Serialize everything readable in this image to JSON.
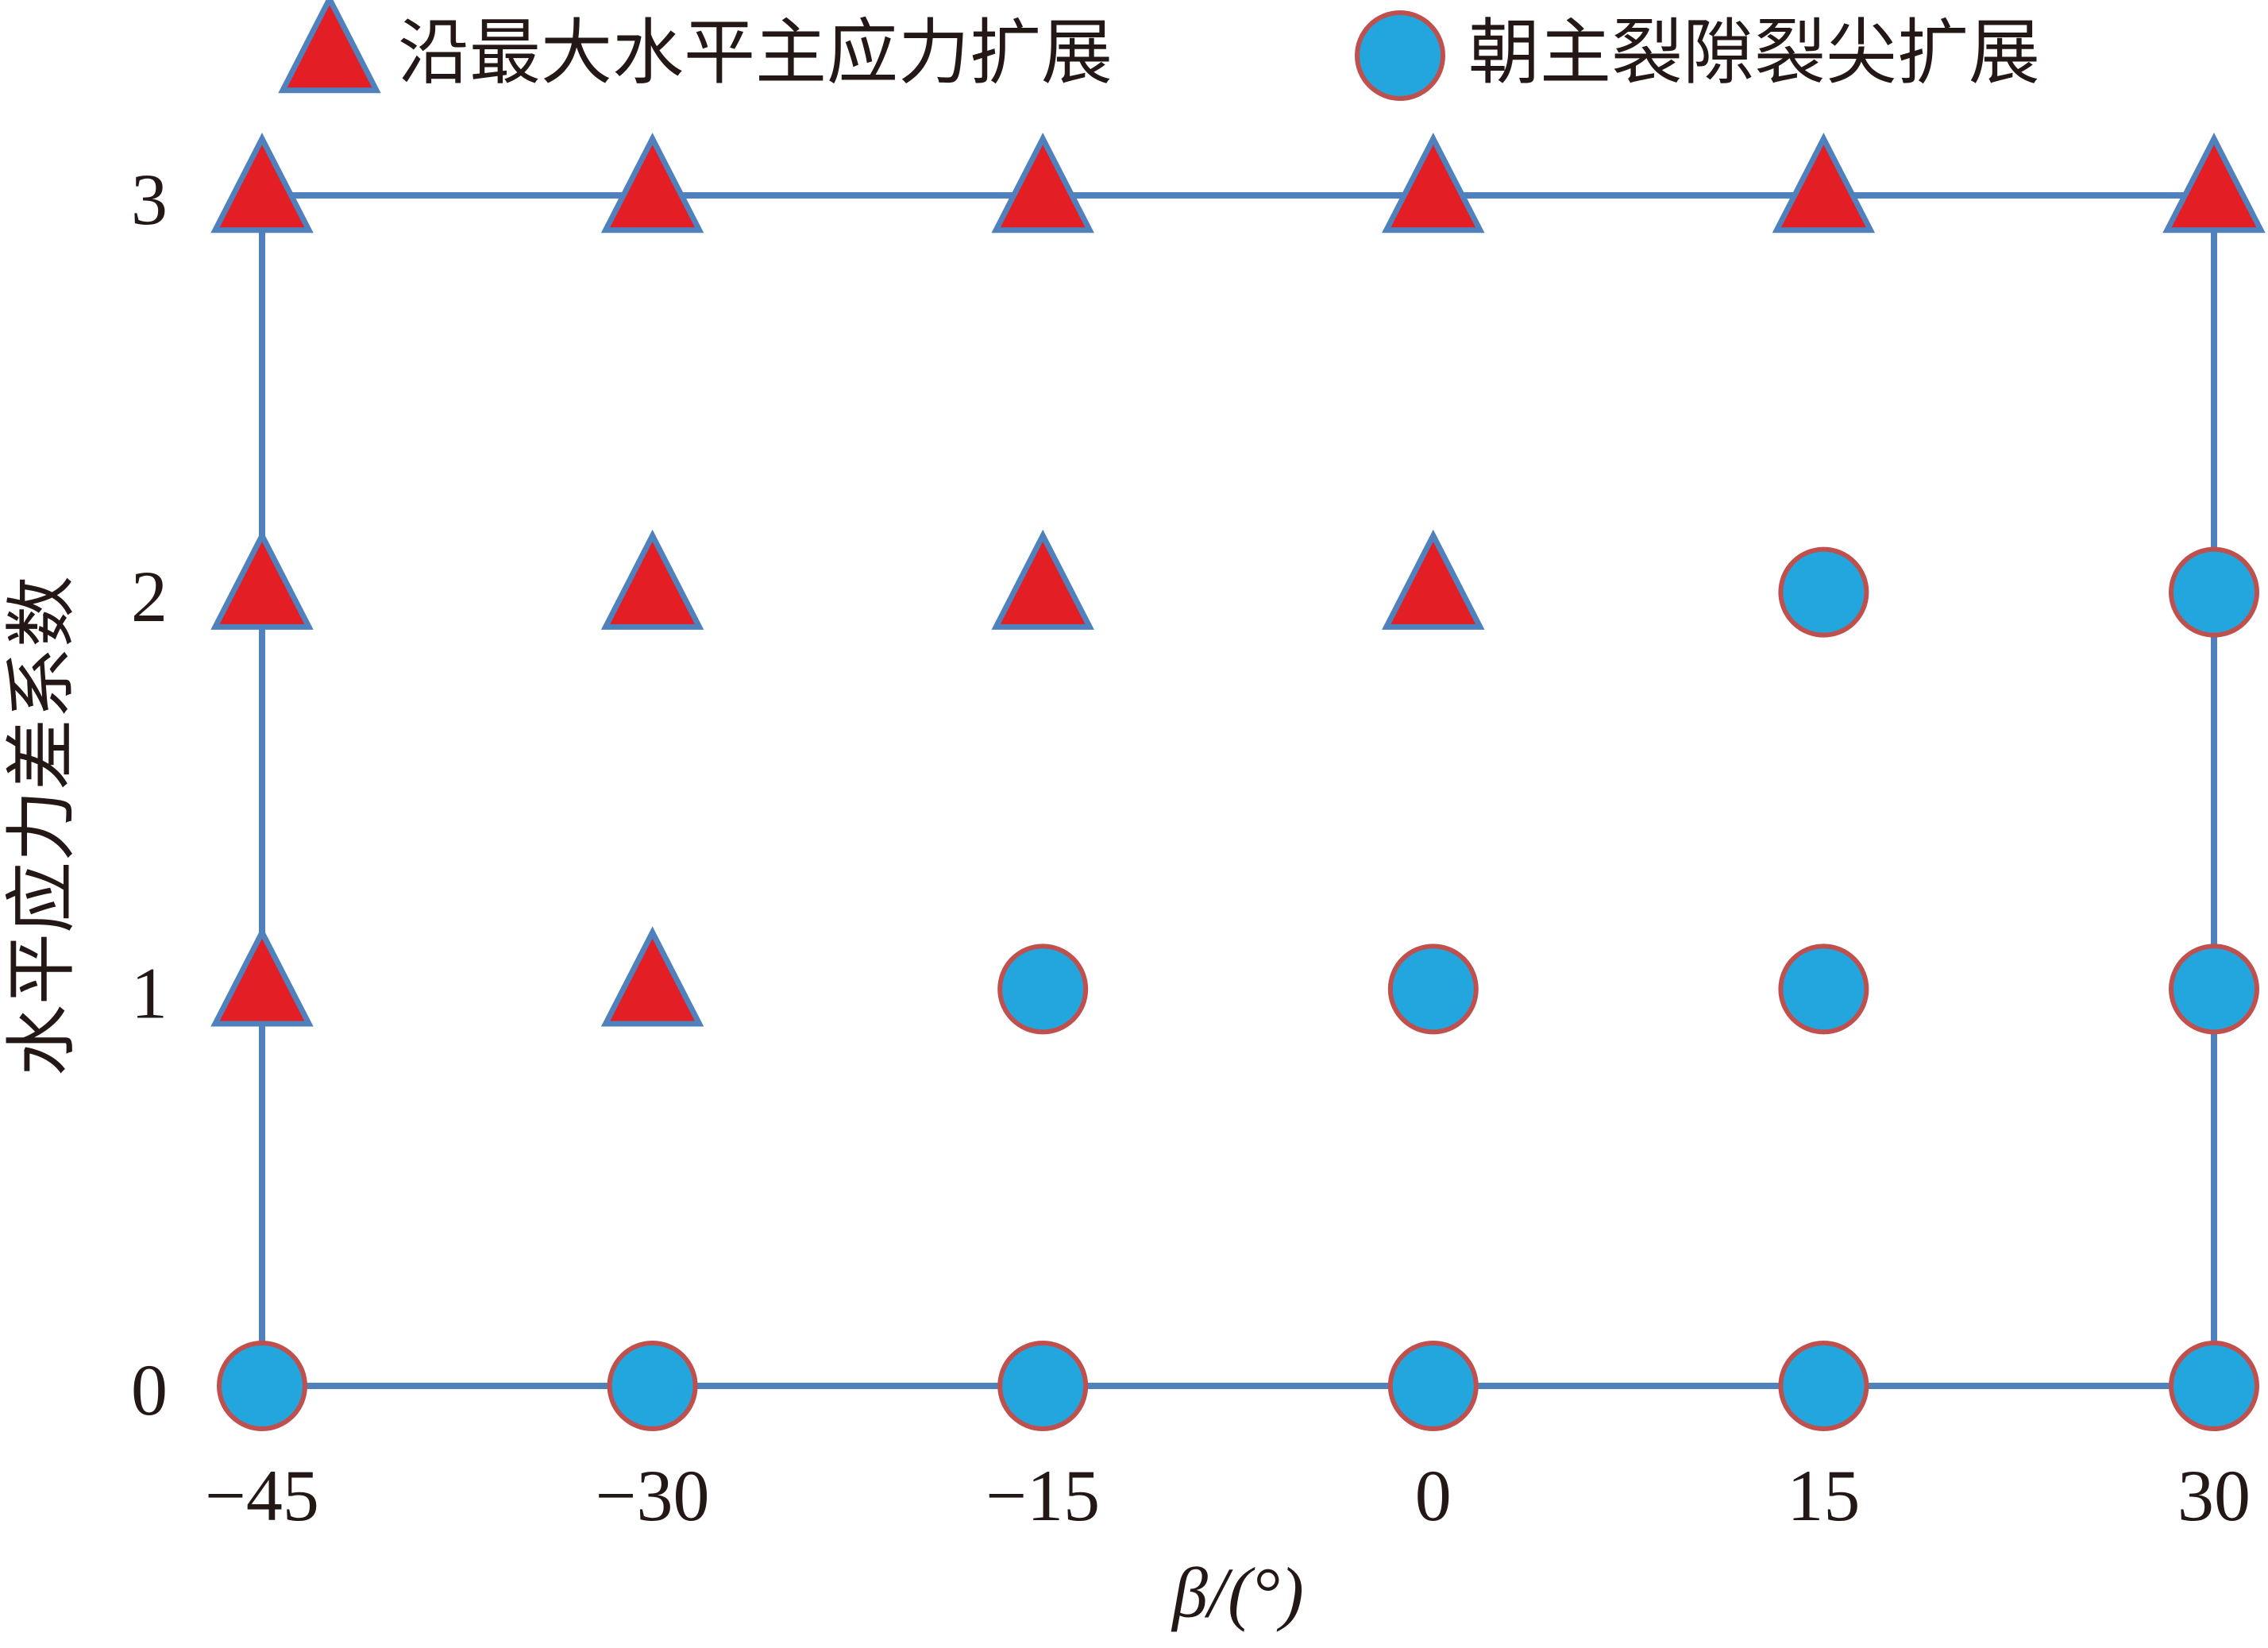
{
  "chart_data": {
    "type": "scatter",
    "xlabel": "β/(°)",
    "ylabel": "水平应力差系数",
    "xlim": [
      -45,
      30
    ],
    "ylim": [
      0,
      3
    ],
    "xticks": [
      {
        "value": -45,
        "label": "−45"
      },
      {
        "value": -30,
        "label": "−30"
      },
      {
        "value": -15,
        "label": "−15"
      },
      0,
      15,
      30
    ],
    "yticks": [
      0,
      1,
      2,
      3
    ],
    "legend": "top",
    "frame_color": "#4f81bd",
    "series": [
      {
        "name": "沿最大水平主应力扩展",
        "marker": "triangle",
        "color": "#e31e24",
        "edgecolor": "#4f81bd",
        "x": [
          -45,
          -30,
          -15,
          0,
          15,
          30,
          -45,
          -30,
          -15,
          0,
          -45,
          -30
        ],
        "values": [
          3,
          3,
          3,
          3,
          3,
          3,
          2,
          2,
          2,
          2,
          1,
          1
        ]
      },
      {
        "name": "朝主裂隙裂尖扩展",
        "marker": "circle",
        "color": "#22a6dd",
        "edgecolor": "#c0504d",
        "x": [
          15,
          30,
          -15,
          0,
          15,
          30,
          -45,
          -30,
          -15,
          0,
          15,
          30
        ],
        "values": [
          2,
          2,
          1,
          1,
          1,
          1,
          0,
          0,
          0,
          0,
          0,
          0
        ]
      }
    ]
  }
}
